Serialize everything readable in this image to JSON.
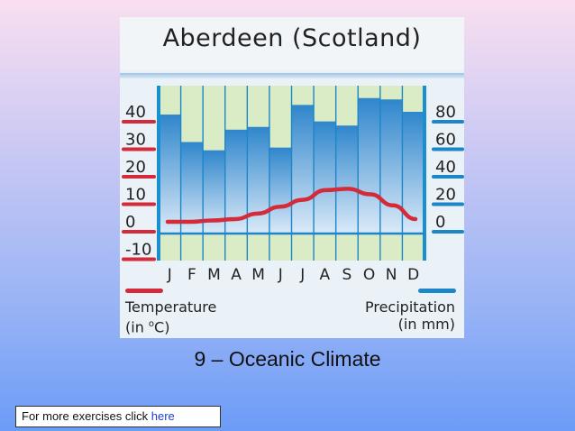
{
  "caption": "9 – Oceanic Climate",
  "footer": {
    "text": "For more exercises click",
    "link_label": "here"
  },
  "colors": {
    "temperature": "#d42b3a",
    "precipitation": "#1c86c9",
    "bar_top": "#2f86cc",
    "bar_bottom": "#dbeaf8",
    "plot_bg": "#d9ecc5"
  },
  "chart_data": {
    "type": "bar",
    "title": "Aberdeen (Scotland)",
    "categories": [
      "J",
      "F",
      "M",
      "A",
      "M",
      "J",
      "J",
      "A",
      "S",
      "O",
      "N",
      "D"
    ],
    "legend": {
      "temperature": {
        "line1": "Temperature",
        "line2_pre": "(in ",
        "line2_sup": "o",
        "line2_post": "C)"
      },
      "precipitation": {
        "line1": "Precipitation",
        "line2": "(in mm)"
      }
    },
    "left_axis": {
      "label": "Temperature (°C)",
      "ticks": [
        "40",
        "30",
        "20",
        "10",
        "0",
        "-10"
      ],
      "range": [
        -10,
        45
      ]
    },
    "right_axis": {
      "label": "Precipitation (mm)",
      "ticks": [
        "80",
        "60",
        "40",
        "20",
        "0"
      ],
      "range": [
        -20,
        90
      ]
    },
    "series": [
      {
        "name": "Precipitation",
        "type": "bar",
        "axis": "right",
        "values": [
          78,
          58,
          52,
          67,
          69,
          54,
          85,
          73,
          70,
          90,
          89,
          80
        ]
      },
      {
        "name": "Temperature",
        "type": "line",
        "axis": "left",
        "values": [
          0,
          0,
          0.5,
          1,
          3,
          5.5,
          8,
          11.5,
          12,
          10,
          6,
          1
        ]
      }
    ],
    "grid": true
  }
}
